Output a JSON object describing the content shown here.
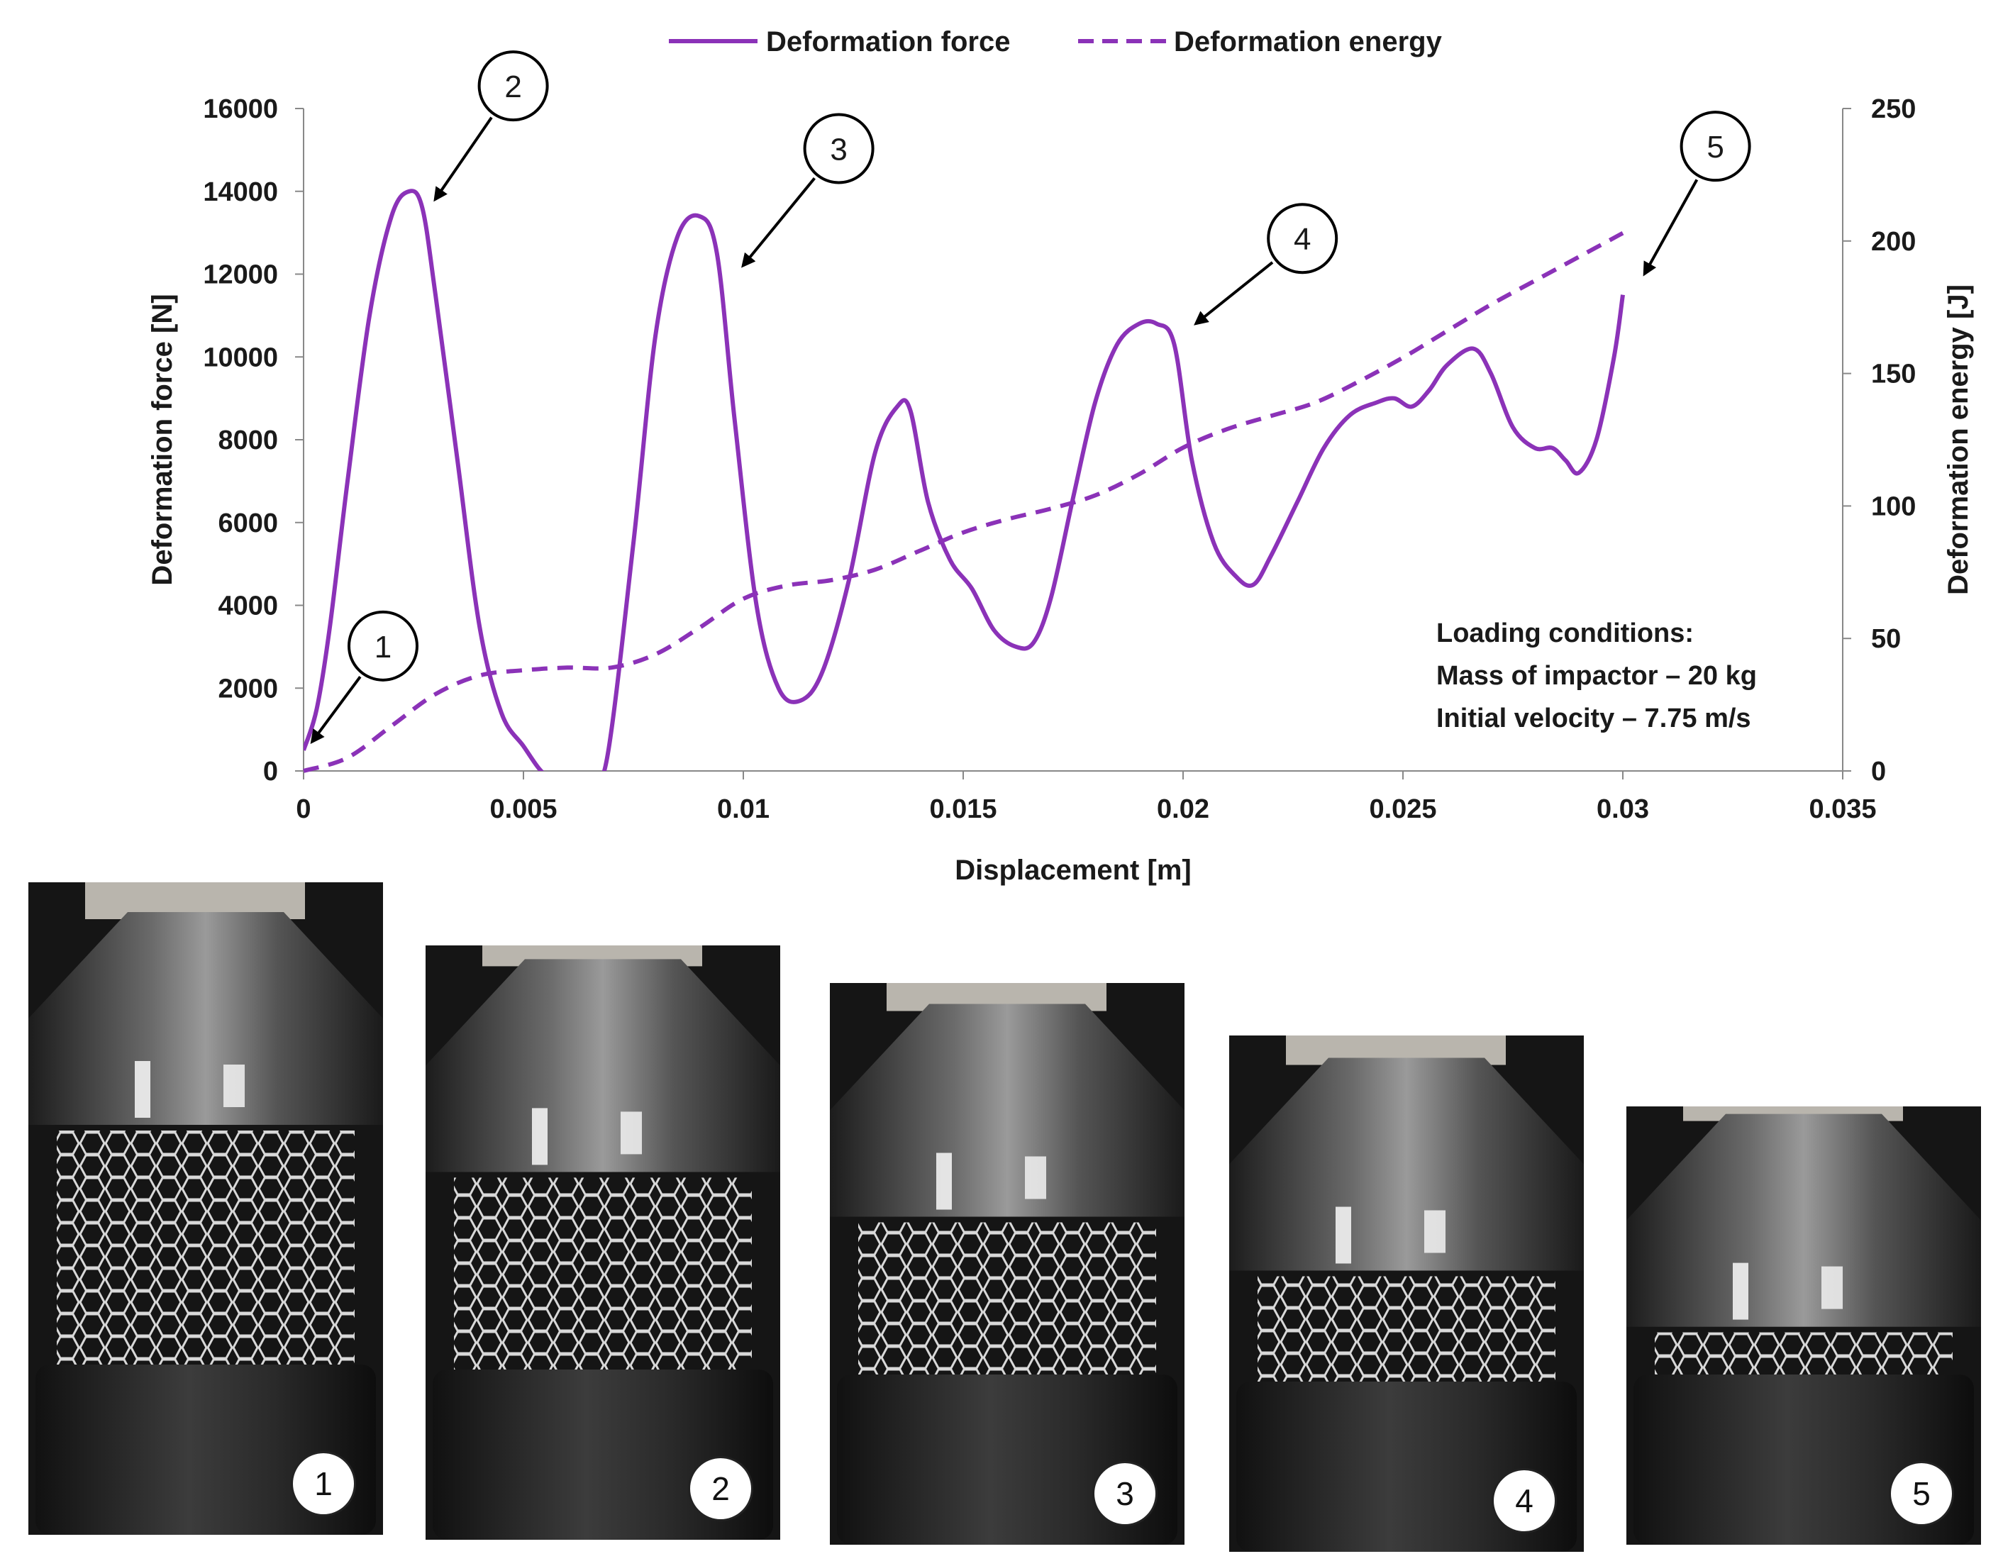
{
  "chart_data": {
    "type": "line",
    "xlabel": "Displacement [m]",
    "ylabel_left": "Deformation force [N]",
    "ylabel_right": "Deformation energy [J]",
    "xlim": [
      0,
      0.035
    ],
    "ylim_left": [
      0,
      16000
    ],
    "ylim_right": [
      0,
      250
    ],
    "x_ticks": [
      "0",
      "0.005",
      "0.01",
      "0.015",
      "0.02",
      "0.025",
      "0.03",
      "0.035"
    ],
    "y_left_ticks": [
      "0",
      "2000",
      "4000",
      "6000",
      "8000",
      "10000",
      "12000",
      "14000",
      "16000"
    ],
    "y_right_ticks": [
      "0",
      "50",
      "100",
      "150",
      "200",
      "250"
    ],
    "legend_position": "top-center",
    "grid": false,
    "series": [
      {
        "name": "Deformation force",
        "axis": "left",
        "style": "solid",
        "color": "#8B32B8",
        "x": [
          0,
          0.0003,
          0.0006,
          0.001,
          0.0015,
          0.002,
          0.0024,
          0.0027,
          0.003,
          0.0035,
          0.004,
          0.0045,
          0.005,
          0.0055,
          0.006,
          0.0065,
          0.0069,
          0.0075,
          0.008,
          0.0085,
          0.009,
          0.0094,
          0.0098,
          0.0103,
          0.0108,
          0.0113,
          0.0118,
          0.0124,
          0.013,
          0.0135,
          0.0138,
          0.0142,
          0.0147,
          0.0152,
          0.0157,
          0.0162,
          0.0166,
          0.017,
          0.0175,
          0.018,
          0.0185,
          0.019,
          0.0194,
          0.0198,
          0.0202,
          0.0207,
          0.0212,
          0.0216,
          0.022,
          0.0226,
          0.0232,
          0.0238,
          0.0244,
          0.0248,
          0.0252,
          0.0256,
          0.026,
          0.0266,
          0.027,
          0.0275,
          0.028,
          0.0284,
          0.0287,
          0.029,
          0.0294,
          0.0298,
          0.03
        ],
        "y": [
          500,
          1500,
          3500,
          7000,
          11000,
          13400,
          14000,
          13600,
          11500,
          7500,
          3500,
          1400,
          600,
          -100,
          -200,
          -200,
          300,
          5500,
          10500,
          12900,
          13400,
          12500,
          8500,
          4000,
          2000,
          1700,
          2400,
          4600,
          7700,
          8800,
          8700,
          6500,
          5100,
          4400,
          3400,
          3000,
          3100,
          4200,
          6600,
          8900,
          10300,
          10800,
          10800,
          10300,
          7500,
          5500,
          4700,
          4500,
          5200,
          6500,
          7800,
          8600,
          8900,
          9000,
          8800,
          9200,
          9800,
          10200,
          9600,
          8300,
          7800,
          7800,
          7500,
          7200,
          8000,
          10000,
          11500
        ]
      },
      {
        "name": "Deformation energy",
        "axis": "right",
        "style": "dashed",
        "color": "#8B32B8",
        "x": [
          0,
          0.001,
          0.002,
          0.003,
          0.004,
          0.005,
          0.006,
          0.007,
          0.008,
          0.009,
          0.01,
          0.011,
          0.012,
          0.013,
          0.014,
          0.015,
          0.016,
          0.017,
          0.018,
          0.019,
          0.02,
          0.021,
          0.022,
          0.023,
          0.024,
          0.025,
          0.026,
          0.027,
          0.028,
          0.029,
          0.03
        ],
        "y": [
          0,
          5,
          17,
          29,
          36,
          38,
          39,
          39,
          44,
          54,
          65,
          70,
          72,
          76,
          83,
          90,
          95,
          99,
          104,
          112,
          122,
          129,
          134,
          139,
          147,
          156,
          166,
          176,
          185,
          194,
          203
        ]
      }
    ],
    "callouts": [
      {
        "label": "1",
        "x": 0.0,
        "y": 500
      },
      {
        "label": "2",
        "x": 0.0028,
        "y": 13600
      },
      {
        "label": "3",
        "x": 0.0098,
        "y": 12000
      },
      {
        "label": "4",
        "x": 0.0201,
        "y": 10600
      },
      {
        "label": "5",
        "x": 0.0303,
        "y": 11800
      }
    ],
    "annotation": [
      "Loading conditions:",
      "Mass of impactor – 20 kg",
      "Initial velocity – 7.75 m/s"
    ]
  },
  "photos": [
    {
      "label": "1"
    },
    {
      "label": "2"
    },
    {
      "label": "3"
    },
    {
      "label": "4"
    },
    {
      "label": "5"
    }
  ]
}
